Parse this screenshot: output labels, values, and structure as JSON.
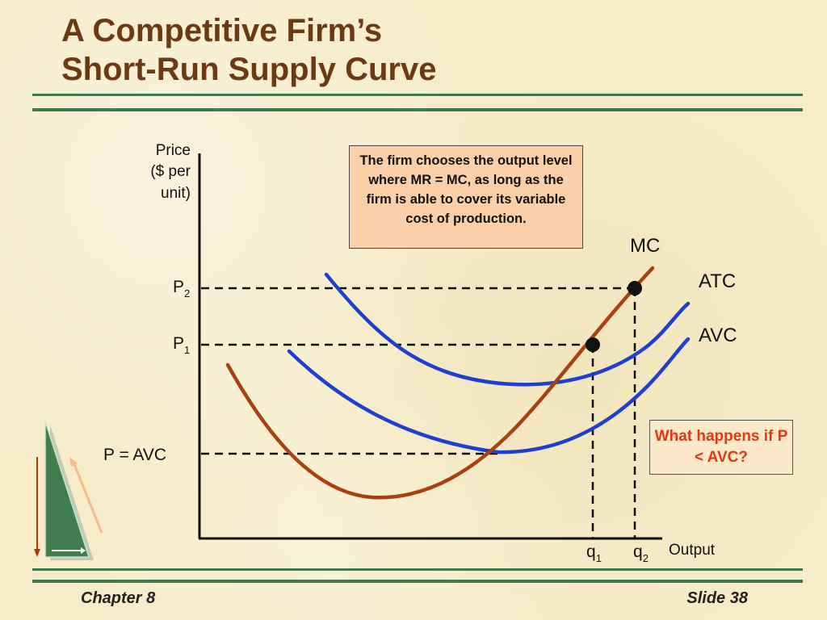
{
  "slide": {
    "title_line1": "A Competitive Firm’s",
    "title_line2": "Short-Run Supply Curve",
    "footer_left": "Chapter 8",
    "footer_right": "Slide 38",
    "accent_color": "#3d7a50",
    "title_color": "#6b3a12"
  },
  "diagram": {
    "y_axis_label": [
      "Price",
      "($ per",
      "unit)"
    ],
    "x_axis_label": "Output",
    "price_labels": {
      "p2_base": "P",
      "p2_sub": "2",
      "p1_base": "P",
      "p1_sub": "1",
      "p_avc": "P = AVC"
    },
    "quantity_labels": {
      "q1_base": "q",
      "q1_sub": "1",
      "q2_base": "q",
      "q2_sub": "2"
    },
    "curves": {
      "mc": {
        "name": "MC",
        "color": "#a8400f"
      },
      "atc": {
        "name": "ATC",
        "color": "#1e3fcf"
      },
      "avc": {
        "name": "AVC",
        "color": "#1e3fcf"
      }
    },
    "note": "The firm chooses the output level where MR = MC, as long as the firm is able to cover its variable cost of production.",
    "question": "What happens if P < AVC?",
    "question_color": "#e03a14",
    "decorative_icon": "triangle-ruler-icon"
  }
}
